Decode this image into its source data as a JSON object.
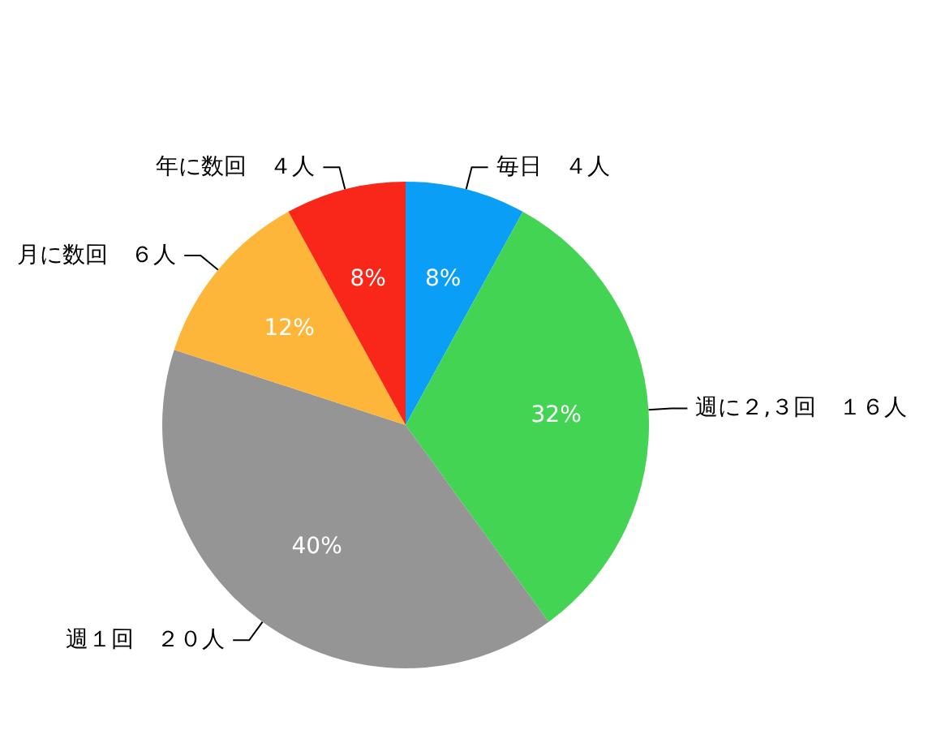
{
  "chart_data": {
    "type": "pie",
    "categories": [
      "毎日　４人",
      "週に２,３回　１６人",
      "週１回　２０人",
      "月に数回　６人",
      "年に数回　４人"
    ],
    "values": [
      8,
      32,
      40,
      12,
      8
    ],
    "value_labels": [
      "8%",
      "32%",
      "40%",
      "12%",
      "8%"
    ],
    "colors": [
      "#0a9ef7",
      "#43d454",
      "#959595",
      "#feb63a",
      "#f9271a"
    ],
    "legend": false
  }
}
